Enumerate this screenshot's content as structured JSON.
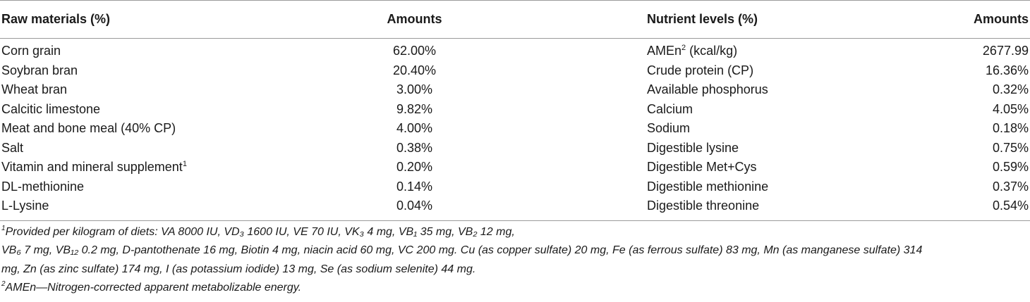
{
  "table": {
    "headers": {
      "raw_materials": "Raw materials (%)",
      "amounts_left": "Amounts",
      "nutrient_levels": "Nutrient levels (%)",
      "amounts_right": "Amounts"
    },
    "rows": [
      {
        "raw": "Corn grain",
        "raw_sup": "",
        "raw_amount": "62.00%",
        "nutrient": "AMEn",
        "nutrient_sup": "2",
        "nutrient_suffix": " (kcal/kg)",
        "nutrient_amount": "2677.99"
      },
      {
        "raw": "Soybran bran",
        "raw_sup": "",
        "raw_amount": "20.40%",
        "nutrient": "Crude protein (CP)",
        "nutrient_sup": "",
        "nutrient_suffix": "",
        "nutrient_amount": "16.36%"
      },
      {
        "raw": "Wheat bran",
        "raw_sup": "",
        "raw_amount": "3.00%",
        "nutrient": "Available phosphorus",
        "nutrient_sup": "",
        "nutrient_suffix": "",
        "nutrient_amount": "0.32%"
      },
      {
        "raw": "Calcitic limestone",
        "raw_sup": "",
        "raw_amount": "9.82%",
        "nutrient": "Calcium",
        "nutrient_sup": "",
        "nutrient_suffix": "",
        "nutrient_amount": "4.05%"
      },
      {
        "raw": "Meat and bone meal (40% CP)",
        "raw_sup": "",
        "raw_amount": "4.00%",
        "nutrient": "Sodium",
        "nutrient_sup": "",
        "nutrient_suffix": "",
        "nutrient_amount": "0.18%"
      },
      {
        "raw": "Salt",
        "raw_sup": "",
        "raw_amount": "0.38%",
        "nutrient": "Digestible lysine",
        "nutrient_sup": "",
        "nutrient_suffix": "",
        "nutrient_amount": "0.75%"
      },
      {
        "raw": "Vitamin and mineral supplement",
        "raw_sup": "1",
        "raw_amount": "0.20%",
        "nutrient": "Digestible Met+Cys",
        "nutrient_sup": "",
        "nutrient_suffix": "",
        "nutrient_amount": "0.59%"
      },
      {
        "raw": "DL-methionine",
        "raw_sup": "",
        "raw_amount": "0.14%",
        "nutrient": "Digestible methionine",
        "nutrient_sup": "",
        "nutrient_suffix": "",
        "nutrient_amount": "0.37%"
      },
      {
        "raw": "L-Lysine",
        "raw_sup": "",
        "raw_amount": "0.04%",
        "nutrient": "Digestible threonine",
        "nutrient_sup": "",
        "nutrient_suffix": "",
        "nutrient_amount": "0.54%"
      }
    ]
  },
  "footnotes": {
    "note1_marker": "1",
    "note1_line1": "Provided per kilogram of diets: VA 8000 IU, VD₃ 1600 IU, VE 70 IU, VK₃ 4 mg, VB₁ 35 mg, VB₂ 12 mg,",
    "note1_line2": "VB₆ 7 mg, VB₁₂ 0.2 mg, D-pantothenate 16 mg, Biotin 4 mg, niacin acid 60 mg, VC 200 mg. Cu (as copper sulfate) 20 mg, Fe (as ferrous sulfate) 83 mg, Mn (as manganese sulfate) 314",
    "note1_line3": "mg, Zn (as zinc sulfate) 174 mg, I (as potassium iodide) 13 mg, Se (as sodium selenite) 44 mg.",
    "note2_marker": "2",
    "note2_text": "AMEn—Nitrogen-corrected apparent metabolizable energy."
  }
}
